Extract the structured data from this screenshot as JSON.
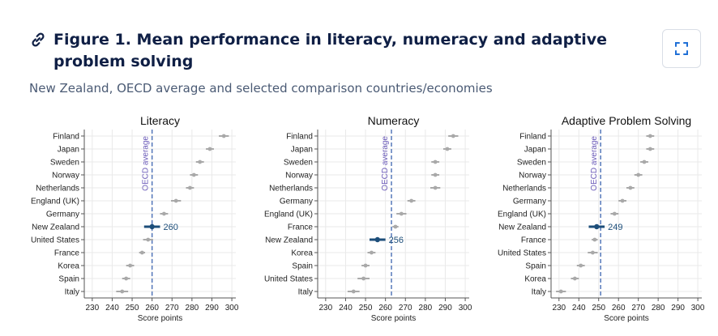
{
  "figure": {
    "title": "Figure 1. Mean performance in literacy, numeracy and adaptive problem solving",
    "subtitle": "New Zealand, OECD average and selected comparison countries/economies",
    "link_icon": "link-icon",
    "expand_icon": "expand-icon"
  },
  "chart_data": [
    {
      "type": "scatter",
      "title": "Literacy",
      "xlabel": "Score points",
      "ylabel": "",
      "xlim": [
        226,
        302
      ],
      "xticks": [
        230,
        240,
        250,
        260,
        270,
        280,
        290,
        300
      ],
      "grid": true,
      "reference_line": {
        "label": "OECD average",
        "value": 260
      },
      "highlight": {
        "category": "New Zealand",
        "label": "260",
        "color": "#1d4e7a"
      },
      "categories": [
        "Finland",
        "Japan",
        "Sweden",
        "Norway",
        "Netherlands",
        "England (UK)",
        "Germany",
        "New Zealand",
        "United States",
        "France",
        "Korea",
        "Spain",
        "Italy"
      ],
      "values": [
        296,
        289,
        284,
        281,
        279,
        272,
        266,
        260,
        258,
        255,
        249,
        247,
        245
      ],
      "ci_halfwidth": [
        2.5,
        2,
        2,
        2,
        2,
        2.5,
        2,
        4,
        2.5,
        1.5,
        2,
        2,
        3
      ]
    },
    {
      "type": "scatter",
      "title": "Numeracy",
      "xlabel": "Score points",
      "ylabel": "",
      "xlim": [
        226,
        302
      ],
      "xticks": [
        230,
        240,
        250,
        260,
        270,
        280,
        290,
        300
      ],
      "grid": true,
      "reference_line": {
        "label": "OECD average",
        "value": 263
      },
      "highlight": {
        "category": "New Zealand",
        "label": "256",
        "color": "#1d4e7a"
      },
      "categories": [
        "Finland",
        "Japan",
        "Sweden",
        "Norway",
        "Netherlands",
        "Germany",
        "England (UK)",
        "France",
        "New Zealand",
        "Korea",
        "Spain",
        "United States",
        "Italy"
      ],
      "values": [
        294,
        291,
        285,
        285,
        285,
        273,
        268,
        265,
        256,
        253,
        250,
        249,
        244
      ],
      "ci_halfwidth": [
        2.5,
        2,
        2,
        2,
        2.5,
        2,
        2.5,
        1.5,
        4,
        2,
        2,
        3,
        3
      ]
    },
    {
      "type": "scatter",
      "title": "Adaptive Problem Solving",
      "xlabel": "Score points",
      "ylabel": "",
      "xlim": [
        226,
        302
      ],
      "xticks": [
        230,
        240,
        250,
        260,
        270,
        280,
        290,
        300
      ],
      "grid": true,
      "reference_line": {
        "label": "OECD average",
        "value": 251
      },
      "highlight": {
        "category": "New Zealand",
        "label": "249",
        "color": "#1d4e7a"
      },
      "categories": [
        "Finland",
        "Japan",
        "Sweden",
        "Norway",
        "Netherlands",
        "Germany",
        "England (UK)",
        "New Zealand",
        "France",
        "United States",
        "Spain",
        "Korea",
        "Italy"
      ],
      "values": [
        276,
        276,
        273,
        270,
        266,
        262,
        258,
        249,
        248,
        247,
        241,
        238,
        231
      ],
      "ci_halfwidth": [
        2,
        2,
        2,
        2,
        2,
        2,
        2,
        4,
        1.5,
        2.5,
        2,
        2,
        2.5
      ]
    }
  ]
}
